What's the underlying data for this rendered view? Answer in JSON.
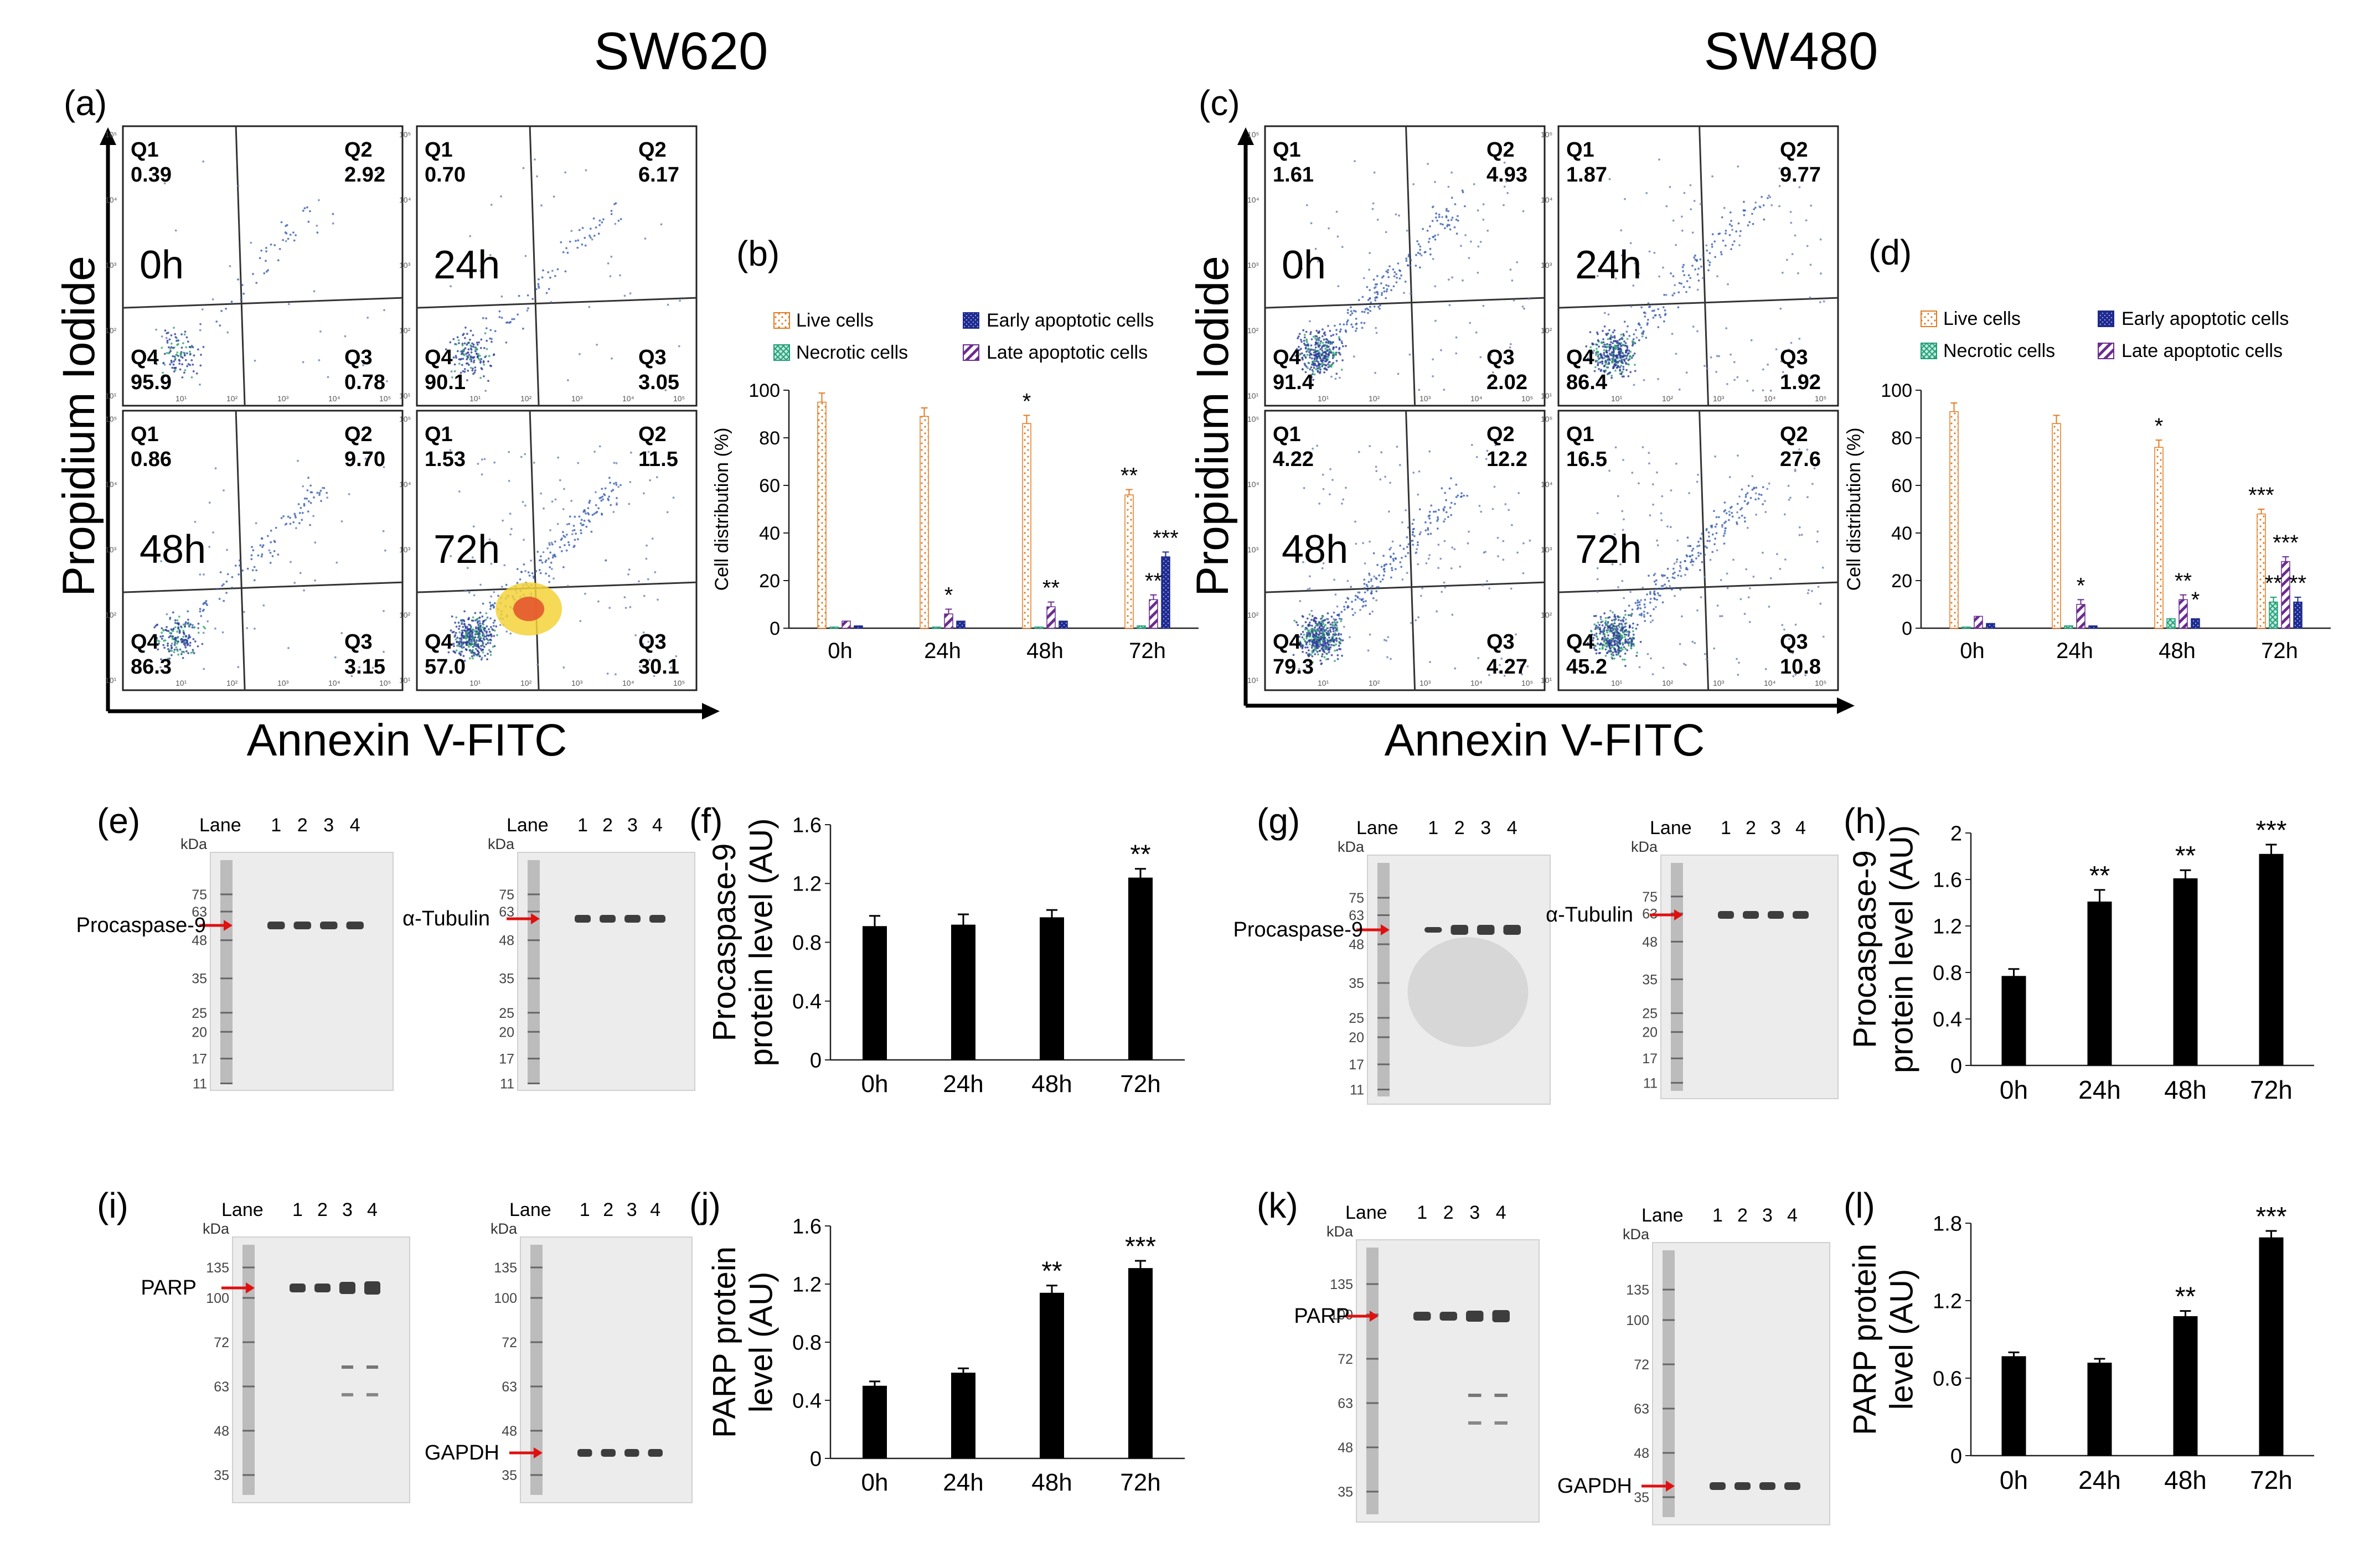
{
  "titles": {
    "left": "SW620",
    "right": "SW480"
  },
  "axis": {
    "pi": "Propidium Iodide",
    "annexin": "Annexin V-FITC"
  },
  "panels": {
    "a": "(a)",
    "b": "(b)",
    "c": "(c)",
    "d": "(d)",
    "e": "(e)",
    "f": "(f)",
    "g": "(g)",
    "h": "(h)",
    "i": "(i)",
    "j": "(j)",
    "k": "(k)",
    "l": "(l)"
  },
  "flow": {
    "SW620": [
      {
        "time": "0h",
        "Q1": "0.39",
        "Q2": "2.92",
        "Q3": "0.78",
        "Q4": "95.9"
      },
      {
        "time": "24h",
        "Q1": "0.70",
        "Q2": "6.17",
        "Q3": "3.05",
        "Q4": "90.1"
      },
      {
        "time": "48h",
        "Q1": "0.86",
        "Q2": "9.70",
        "Q3": "3.15",
        "Q4": "86.3"
      },
      {
        "time": "72h",
        "Q1": "1.53",
        "Q2": "11.5",
        "Q3": "30.1",
        "Q4": "57.0"
      }
    ],
    "SW480": [
      {
        "time": "0h",
        "Q1": "1.61",
        "Q2": "4.93",
        "Q3": "2.02",
        "Q4": "91.4"
      },
      {
        "time": "24h",
        "Q1": "1.87",
        "Q2": "9.77",
        "Q3": "1.92",
        "Q4": "86.4"
      },
      {
        "time": "48h",
        "Q1": "4.22",
        "Q2": "12.2",
        "Q3": "4.27",
        "Q4": "79.3"
      },
      {
        "time": "72h",
        "Q1": "16.5",
        "Q2": "27.6",
        "Q3": "10.8",
        "Q4": "45.2"
      }
    ],
    "quadrant_labels": [
      "Q1",
      "Q2",
      "Q3",
      "Q4"
    ]
  },
  "legend": {
    "live": "Live cells",
    "necrotic": "Necrotic cells",
    "early": "Early apoptotic cells",
    "late": "Late apoptotic cells"
  },
  "colors": {
    "live": "#E07B22",
    "necrotic": "#1E9E78",
    "early": "#1F2A8A",
    "late": "#6A2C8E",
    "bar": "#000000",
    "arrow": "#E01010"
  },
  "blots": {
    "lane_label": "Lane",
    "kda_label": "kDa",
    "lanes": [
      "1",
      "2",
      "3",
      "4"
    ],
    "ladder_casp": [
      "75",
      "63",
      "48",
      "35",
      "25",
      "20",
      "17",
      "11"
    ],
    "ladder_parp": [
      "135",
      "100",
      "72",
      "63",
      "48",
      "35"
    ],
    "procaspase": "Procaspase-9",
    "tubulin": "α-Tubulin",
    "parp": "PARP",
    "gapdh": "GAPDH"
  },
  "chart_data": [
    {
      "id": "b",
      "type": "bar",
      "title": "",
      "ylabel": "Cell distribution (%)",
      "categories": [
        "0h",
        "24h",
        "48h",
        "72h"
      ],
      "ylim": [
        0,
        100
      ],
      "yticks": [
        0,
        20,
        40,
        60,
        80,
        100
      ],
      "series": [
        {
          "name": "Live cells",
          "values": [
            95,
            89,
            86,
            56
          ]
        },
        {
          "name": "Necrotic cells",
          "values": [
            0.5,
            0.5,
            0.5,
            1
          ]
        },
        {
          "name": "Late apoptotic cells",
          "values": [
            3,
            6,
            9,
            12
          ]
        },
        {
          "name": "Early apoptotic cells",
          "values": [
            1,
            3,
            3,
            30
          ]
        }
      ],
      "annotations": [
        {
          "category": "24h",
          "series": "Late apoptotic cells",
          "text": "*"
        },
        {
          "category": "48h",
          "series": "Live cells",
          "text": "*"
        },
        {
          "category": "48h",
          "series": "Late apoptotic cells",
          "text": "**"
        },
        {
          "category": "72h",
          "series": "Live cells",
          "text": "**"
        },
        {
          "category": "72h",
          "series": "Late apoptotic cells",
          "text": "**"
        },
        {
          "category": "72h",
          "series": "Early apoptotic cells",
          "text": "***"
        }
      ]
    },
    {
      "id": "d",
      "type": "bar",
      "title": "",
      "ylabel": "Cell distribution (%)",
      "categories": [
        "0h",
        "24h",
        "48h",
        "72h"
      ],
      "ylim": [
        0,
        100
      ],
      "yticks": [
        0,
        20,
        40,
        60,
        80,
        100
      ],
      "series": [
        {
          "name": "Live cells",
          "values": [
            91,
            86,
            76,
            48
          ]
        },
        {
          "name": "Necrotic cells",
          "values": [
            0.5,
            1,
            4,
            11
          ]
        },
        {
          "name": "Late apoptotic cells",
          "values": [
            5,
            10,
            12,
            28
          ]
        },
        {
          "name": "Early apoptotic cells",
          "values": [
            2,
            1,
            4,
            11
          ]
        }
      ],
      "annotations": [
        {
          "category": "24h",
          "series": "Late apoptotic cells",
          "text": "*"
        },
        {
          "category": "48h",
          "series": "Live cells",
          "text": "*"
        },
        {
          "category": "48h",
          "series": "Late apoptotic cells",
          "text": "**"
        },
        {
          "category": "48h",
          "series": "Early apoptotic cells",
          "text": "*"
        },
        {
          "category": "72h",
          "series": "Live cells",
          "text": "***"
        },
        {
          "category": "72h",
          "series": "Necrotic cells",
          "text": "**"
        },
        {
          "category": "72h",
          "series": "Late apoptotic cells",
          "text": "***"
        },
        {
          "category": "72h",
          "series": "Early apoptotic cells",
          "text": "**"
        }
      ]
    },
    {
      "id": "f",
      "type": "bar",
      "ylabel": "Procaspase-9 protein level (AU)",
      "categories": [
        "0h",
        "24h",
        "48h",
        "72h"
      ],
      "ylim": [
        0,
        1.6
      ],
      "yticks": [
        "0",
        "0.4",
        "0.8",
        "1.2",
        "1.6"
      ],
      "values": [
        0.91,
        0.92,
        0.97,
        1.24
      ],
      "errors": [
        0.07,
        0.07,
        0.05,
        0.06
      ],
      "annotations": [
        "",
        "",
        "",
        "**"
      ]
    },
    {
      "id": "h",
      "type": "bar",
      "ylabel": "Procaspase-9 protein level (AU)",
      "categories": [
        "0h",
        "24h",
        "48h",
        "72h"
      ],
      "ylim": [
        0,
        2
      ],
      "yticks": [
        "0",
        "0.4",
        "0.8",
        "1.2",
        "1.6",
        "2"
      ],
      "values": [
        0.77,
        1.41,
        1.61,
        1.82
      ],
      "errors": [
        0.06,
        0.1,
        0.07,
        0.08
      ],
      "annotations": [
        "",
        "**",
        "**",
        "***"
      ]
    },
    {
      "id": "j",
      "type": "bar",
      "ylabel": "PARP protein level (AU)",
      "categories": [
        "0h",
        "24h",
        "48h",
        "72h"
      ],
      "ylim": [
        0,
        1.6
      ],
      "yticks": [
        "0",
        "0.4",
        "0.8",
        "1.2",
        "1.6"
      ],
      "values": [
        0.5,
        0.59,
        1.14,
        1.31
      ],
      "errors": [
        0.03,
        0.03,
        0.05,
        0.05
      ],
      "annotations": [
        "",
        "",
        "**",
        "***"
      ]
    },
    {
      "id": "l",
      "type": "bar",
      "ylabel": "PARP protein level (AU)",
      "categories": [
        "0h",
        "24h",
        "48h",
        "72h"
      ],
      "ylim": [
        0,
        1.8
      ],
      "yticks": [
        "0",
        "0.6",
        "1.2",
        "1.8"
      ],
      "values": [
        0.77,
        0.72,
        1.08,
        1.69
      ],
      "errors": [
        0.03,
        0.03,
        0.04,
        0.05
      ],
      "annotations": [
        "",
        "",
        "**",
        "***"
      ]
    }
  ]
}
